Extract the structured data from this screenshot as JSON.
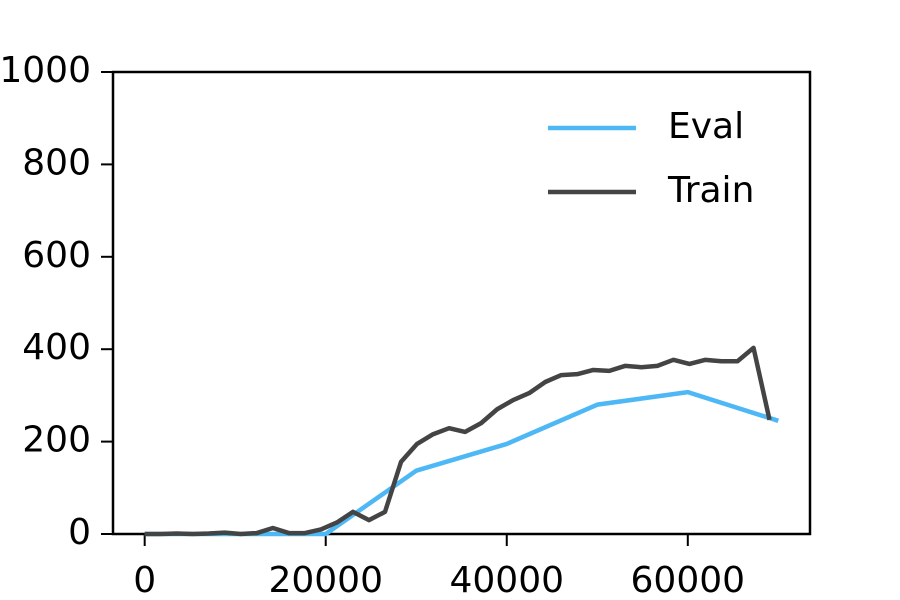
{
  "chart_data": {
    "type": "line",
    "series": [
      {
        "name": "Eval",
        "color": "#4db8f5",
        "x": [
          0,
          10000,
          20000,
          30000,
          40000,
          50000,
          60000,
          70000
        ],
        "values": [
          0,
          0,
          0,
          137,
          195,
          280,
          307,
          245
        ]
      },
      {
        "name": "Train",
        "color": "#444444",
        "x": [
          0,
          1770,
          3540,
          5310,
          7080,
          8850,
          10620,
          12390,
          14160,
          15930,
          17700,
          19470,
          21240,
          23010,
          24780,
          26550,
          28320,
          30090,
          31860,
          33630,
          35400,
          37170,
          38940,
          40710,
          42480,
          44250,
          46020,
          47790,
          49560,
          51330,
          53100,
          54870,
          56640,
          58410,
          60180,
          61950,
          63720,
          65490,
          67260,
          69030
        ],
        "values": [
          0,
          0,
          1,
          0,
          1,
          3,
          0,
          2,
          13,
          2,
          2,
          10,
          25,
          48,
          30,
          48,
          156,
          195,
          216,
          229,
          221,
          240,
          270,
          290,
          305,
          329,
          344,
          346,
          355,
          353,
          364,
          361,
          364,
          377,
          368,
          377,
          374,
          374,
          403,
          247
        ]
      }
    ],
    "xlim": [
      -3500,
      73500
    ],
    "xticks": [
      0,
      20000,
      40000,
      60000
    ],
    "ylim": [
      0,
      1000
    ],
    "yticks": [
      0,
      200,
      400,
      600,
      800,
      1000
    ],
    "grid": false,
    "legend": "upper-right"
  }
}
